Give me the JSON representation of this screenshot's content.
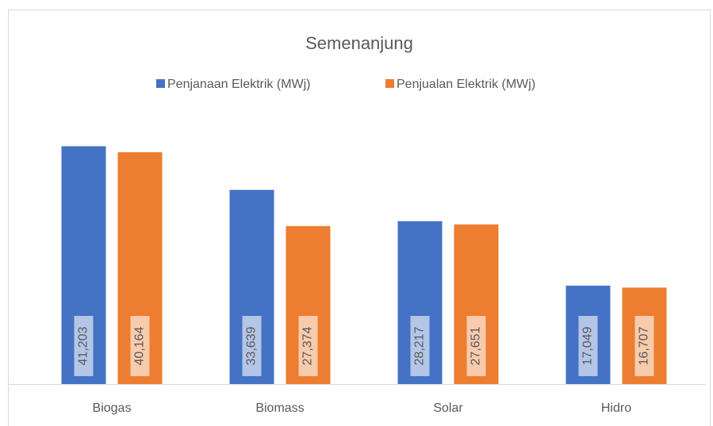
{
  "chart_data": {
    "type": "bar",
    "title": "Semenanjung",
    "categories": [
      "Biogas",
      "Biomass",
      "Solar",
      "Hidro"
    ],
    "series": [
      {
        "name": "Penjanaan Elektrik (MWj)",
        "color": "#4472c4",
        "values": [
          41203,
          33639,
          28217,
          17049
        ],
        "value_labels": [
          "41,203",
          "33,639",
          "28,217",
          "17,049"
        ]
      },
      {
        "name": "Penjualan Elektrik (MWj)",
        "color": "#ed7d31",
        "values": [
          40164,
          27374,
          27651,
          16707
        ],
        "value_labels": [
          "40,164",
          "27,374",
          "27,651",
          "16,707"
        ]
      }
    ],
    "ylim": [
      0,
      45000
    ],
    "legend": "top"
  }
}
